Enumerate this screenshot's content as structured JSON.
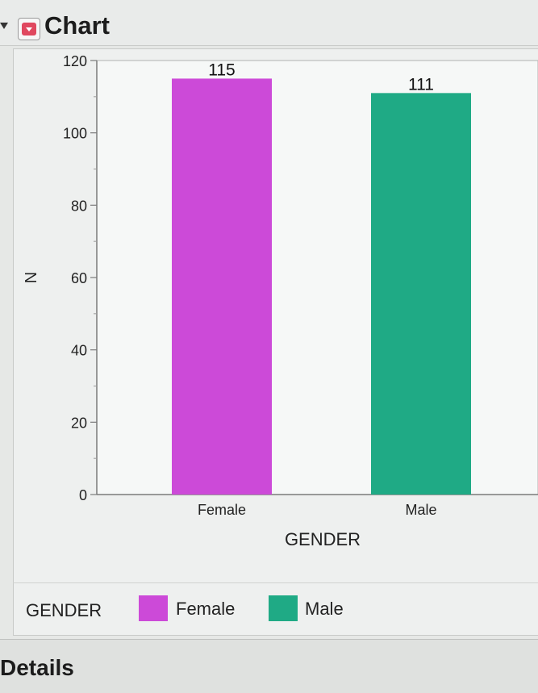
{
  "section": {
    "title": "Chart"
  },
  "details": {
    "title": "Details"
  },
  "legend": {
    "title": "GENDER",
    "items": [
      {
        "label": "Female",
        "color": "#cc4ad8"
      },
      {
        "label": "Male",
        "color": "#1faa85"
      }
    ]
  },
  "chart_data": {
    "type": "bar",
    "categories": [
      "Female",
      "Male"
    ],
    "values": [
      115,
      111
    ],
    "colors": [
      "#cc4ad8",
      "#1faa85"
    ],
    "xlabel": "GENDER",
    "ylabel": "N",
    "ylim": [
      0,
      120
    ],
    "yticks": [
      0,
      20,
      40,
      60,
      80,
      100,
      120
    ],
    "data_labels": [
      "115",
      "111"
    ],
    "grid": false,
    "legend_position": "bottom"
  }
}
